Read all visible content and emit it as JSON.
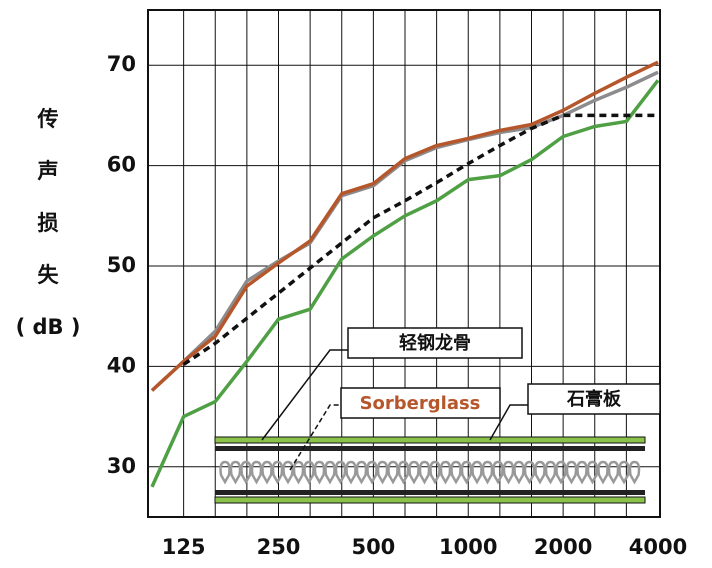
{
  "chart_data": {
    "type": "line",
    "ylabel": [
      "传",
      "声",
      "损",
      "失",
      "( dB )"
    ],
    "categories": [
      null,
      "125",
      null,
      null,
      "250",
      null,
      null,
      "500",
      null,
      null,
      "1000",
      null,
      null,
      "2000",
      null,
      null,
      "4000"
    ],
    "series": [
      {
        "color": "#8c8c8e",
        "style": "solid",
        "values": [
          37.6,
          40.5,
          43.5,
          48.5,
          50.5,
          52.3,
          57,
          58,
          60.5,
          61.8,
          62.6,
          63.3,
          63.8,
          65,
          66.5,
          67.8,
          69.3
        ]
      },
      {
        "color": "#b5562b",
        "style": "solid",
        "values": [
          37.6,
          40.5,
          43,
          48,
          50.3,
          52.5,
          57.2,
          58.2,
          60.7,
          62,
          62.7,
          63.5,
          64.1,
          65.5,
          67.2,
          68.8,
          70.3
        ]
      },
      {
        "color": "#4fa044",
        "style": "solid",
        "values": [
          28,
          35,
          36.5,
          40.5,
          44.7,
          45.7,
          50.7,
          53,
          55,
          56.5,
          58.6,
          59,
          60.6,
          62.9,
          63.9,
          64.4,
          68.5
        ]
      },
      {
        "color": "#111111",
        "style": "dashed",
        "values": [
          null,
          40.2,
          42.3,
          44.8,
          47.3,
          49.8,
          52.3,
          54.8,
          56.5,
          58.3,
          60.2,
          62,
          63.7,
          65,
          65,
          65,
          65
        ]
      }
    ],
    "annotations": [
      "轻钢龙骨",
      "Sorberglass",
      "石膏板"
    ],
    "ylim": [
      25,
      75.5
    ],
    "yticks": [
      30,
      40,
      50,
      60,
      70
    ],
    "grid": true
  }
}
